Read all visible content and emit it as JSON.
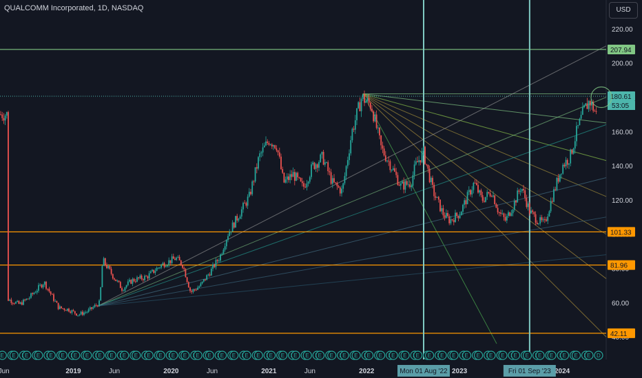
{
  "chart_data": {
    "type": "candlestick",
    "title": "QUALCOMM Incorporated, 1D, NASDAQ",
    "currency": "USD",
    "x_ticks": [
      "Jun",
      "2019",
      "Jun",
      "2020",
      "Jun",
      "2021",
      "Jun",
      "2022",
      "2023",
      "Ju",
      "2024"
    ],
    "y_ticks": [
      220,
      200,
      180,
      160,
      140,
      120,
      100,
      80,
      60,
      40
    ],
    "ylim": [
      30,
      228
    ],
    "grid": false,
    "price_series": [
      {
        "x": 2018.33,
        "y": 62
      },
      {
        "x": 2018.45,
        "y": 59
      },
      {
        "x": 2018.55,
        "y": 63
      },
      {
        "x": 2018.7,
        "y": 72
      },
      {
        "x": 2018.85,
        "y": 57
      },
      {
        "x": 2018.95,
        "y": 56
      },
      {
        "x": 2019.05,
        "y": 53
      },
      {
        "x": 2019.15,
        "y": 55
      },
      {
        "x": 2019.27,
        "y": 60
      },
      {
        "x": 2019.3,
        "y": 85
      },
      {
        "x": 2019.4,
        "y": 76
      },
      {
        "x": 2019.5,
        "y": 68
      },
      {
        "x": 2019.6,
        "y": 73
      },
      {
        "x": 2019.75,
        "y": 75
      },
      {
        "x": 2019.9,
        "y": 82
      },
      {
        "x": 2020.05,
        "y": 86
      },
      {
        "x": 2020.12,
        "y": 82
      },
      {
        "x": 2020.2,
        "y": 66
      },
      {
        "x": 2020.3,
        "y": 70
      },
      {
        "x": 2020.4,
        "y": 78
      },
      {
        "x": 2020.5,
        "y": 87
      },
      {
        "x": 2020.58,
        "y": 100
      },
      {
        "x": 2020.7,
        "y": 112
      },
      {
        "x": 2020.8,
        "y": 122
      },
      {
        "x": 2020.9,
        "y": 145
      },
      {
        "x": 2021.0,
        "y": 155
      },
      {
        "x": 2021.08,
        "y": 152
      },
      {
        "x": 2021.15,
        "y": 130
      },
      {
        "x": 2021.25,
        "y": 135
      },
      {
        "x": 2021.35,
        "y": 127
      },
      {
        "x": 2021.45,
        "y": 140
      },
      {
        "x": 2021.55,
        "y": 145
      },
      {
        "x": 2021.65,
        "y": 130
      },
      {
        "x": 2021.75,
        "y": 125
      },
      {
        "x": 2021.85,
        "y": 160
      },
      {
        "x": 2021.95,
        "y": 180
      },
      {
        "x": 2022.05,
        "y": 175
      },
      {
        "x": 2022.15,
        "y": 150
      },
      {
        "x": 2022.25,
        "y": 140
      },
      {
        "x": 2022.35,
        "y": 128
      },
      {
        "x": 2022.45,
        "y": 130
      },
      {
        "x": 2022.5,
        "y": 140
      },
      {
        "x": 2022.58,
        "y": 148
      },
      {
        "x": 2022.68,
        "y": 125
      },
      {
        "x": 2022.78,
        "y": 112
      },
      {
        "x": 2022.85,
        "y": 108
      },
      {
        "x": 2022.95,
        "y": 112
      },
      {
        "x": 2023.05,
        "y": 124
      },
      {
        "x": 2023.1,
        "y": 130
      },
      {
        "x": 2023.18,
        "y": 120
      },
      {
        "x": 2023.28,
        "y": 125
      },
      {
        "x": 2023.35,
        "y": 113
      },
      {
        "x": 2023.42,
        "y": 108
      },
      {
        "x": 2023.5,
        "y": 117
      },
      {
        "x": 2023.58,
        "y": 128
      },
      {
        "x": 2023.67,
        "y": 113
      },
      {
        "x": 2023.75,
        "y": 108
      },
      {
        "x": 2023.82,
        "y": 106
      },
      {
        "x": 2023.9,
        "y": 122
      },
      {
        "x": 2024.0,
        "y": 140
      },
      {
        "x": 2024.08,
        "y": 145
      },
      {
        "x": 2024.15,
        "y": 160
      },
      {
        "x": 2024.22,
        "y": 172
      },
      {
        "x": 2024.28,
        "y": 178
      },
      {
        "x": 2024.35,
        "y": 170
      }
    ],
    "horizontal_levels": [
      {
        "value": 207.94,
        "label": "207.94",
        "color": "#81c784",
        "style": "solid"
      },
      {
        "value": 101.33,
        "label": "101.33",
        "color": "#ff9800",
        "style": "solid"
      },
      {
        "value": 81.96,
        "label": "81.96",
        "color": "#ff9800",
        "style": "solid"
      },
      {
        "value": 42.11,
        "label": "42.11",
        "color": "#ff9800",
        "style": "solid"
      },
      {
        "value": 180.61,
        "label": "180.61",
        "color": "#4db6ac",
        "style": "dotted"
      }
    ],
    "countdown": "53:05",
    "vertical_markers": [
      {
        "x": 2022.583,
        "label": "Mon 01 Aug '22",
        "color": "#80cbc4"
      },
      {
        "x": 2023.667,
        "label": "Fri 01 Sep '23",
        "color": "#80cbc4"
      }
    ],
    "events": {
      "labels": [
        "E",
        "D"
      ],
      "x": [
        2018.33,
        2018.45,
        2018.58,
        2018.7,
        2018.83,
        2018.95,
        2019.08,
        2019.2,
        2019.33,
        2019.45,
        2019.58,
        2019.7,
        2019.83,
        2019.95,
        2020.08,
        2020.2,
        2020.33,
        2020.45,
        2020.58,
        2020.7,
        2020.83,
        2020.95,
        2021.08,
        2021.2,
        2021.33,
        2021.45,
        2021.58,
        2021.7,
        2021.83,
        2021.95,
        2022.08,
        2022.2,
        2022.33,
        2022.45,
        2022.58,
        2022.7,
        2022.83,
        2022.95,
        2023.08,
        2023.2,
        2023.33,
        2023.45,
        2023.58,
        2023.7,
        2023.83,
        2023.95,
        2024.08,
        2024.2,
        2024.33
      ]
    },
    "colors": {
      "background": "#131722",
      "up": "#26a69a",
      "down": "#ef5350",
      "text": "#d1d4dc",
      "orange": "#ff9800",
      "green": "#81c784",
      "teal": "#4db6ac"
    }
  }
}
